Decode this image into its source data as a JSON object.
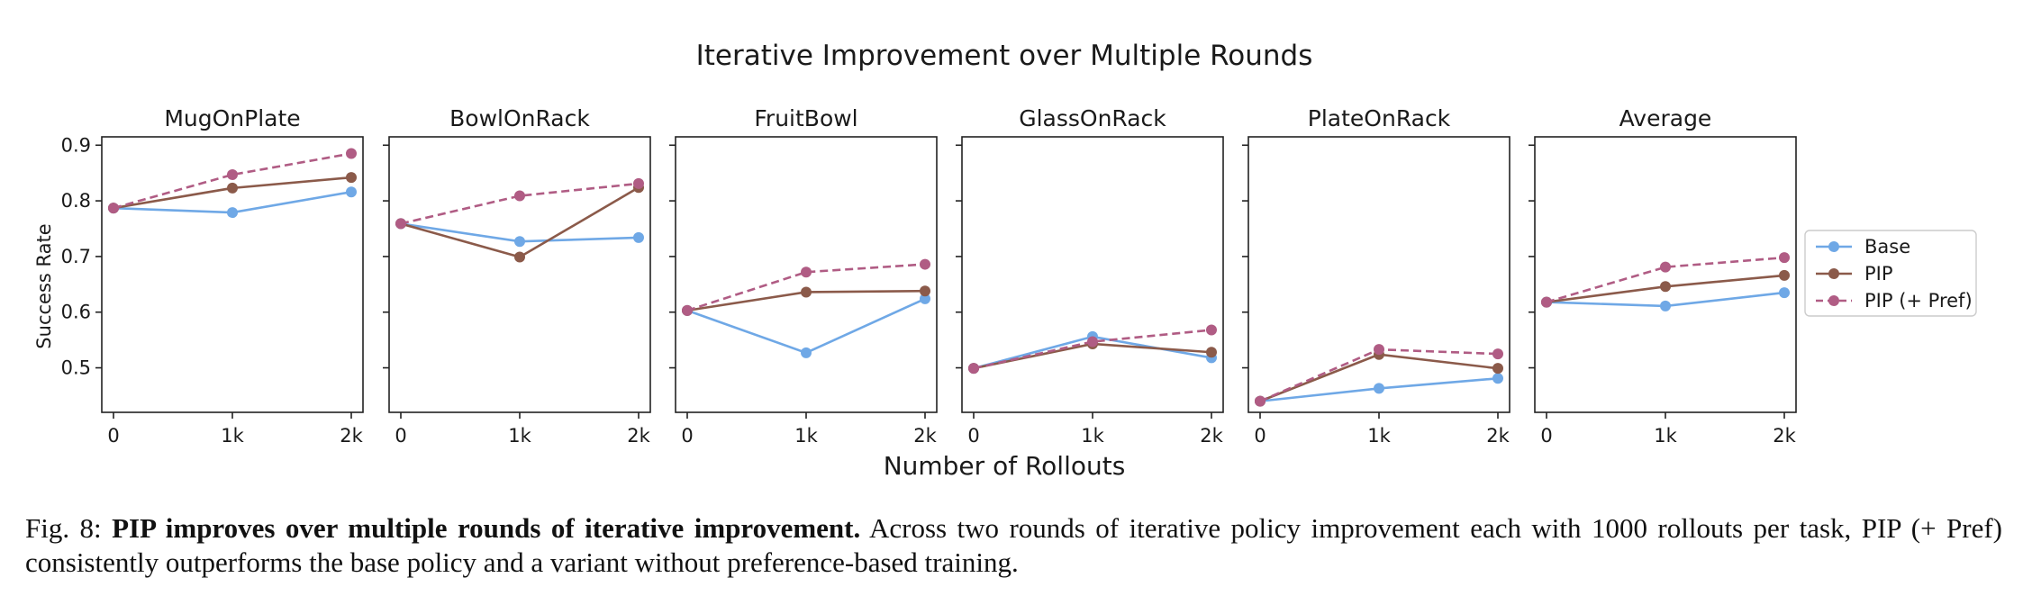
{
  "chart_data": {
    "type": "line",
    "title": "Iterative Improvement over Multiple Rounds",
    "xlabel": "Number of Rollouts",
    "ylabel": "Success Rate",
    "x": [
      "0",
      "1k",
      "2k"
    ],
    "ylim": [
      0.42,
      0.915
    ],
    "yticks": [
      "0.5",
      "0.6",
      "0.7",
      "0.8",
      "0.9"
    ],
    "legend": {
      "placement": "right",
      "entries": [
        "Base",
        "PIP",
        "PIP (+ Pref)"
      ]
    },
    "colors": {
      "Base": "#6fa8e6",
      "PIP": "#8b5a4a",
      "PIP (+ Pref)": "#b05c84"
    },
    "panels": [
      {
        "title": "MugOnPlate",
        "series": [
          {
            "name": "Base",
            "values": [
              0.787,
              0.779,
              0.816
            ]
          },
          {
            "name": "PIP",
            "values": [
              0.787,
              0.823,
              0.842
            ]
          },
          {
            "name": "PIP (+ Pref)",
            "values": [
              0.787,
              0.847,
              0.885
            ]
          }
        ]
      },
      {
        "title": "BowlOnRack",
        "series": [
          {
            "name": "Base",
            "values": [
              0.759,
              0.727,
              0.734
            ]
          },
          {
            "name": "PIP",
            "values": [
              0.759,
              0.699,
              0.824
            ]
          },
          {
            "name": "PIP (+ Pref)",
            "values": [
              0.759,
              0.809,
              0.831
            ]
          }
        ]
      },
      {
        "title": "FruitBowl",
        "series": [
          {
            "name": "Base",
            "values": [
              0.603,
              0.527,
              0.624
            ]
          },
          {
            "name": "PIP",
            "values": [
              0.603,
              0.636,
              0.638
            ]
          },
          {
            "name": "PIP (+ Pref)",
            "values": [
              0.603,
              0.672,
              0.686
            ]
          }
        ]
      },
      {
        "title": "GlassOnRack",
        "series": [
          {
            "name": "Base",
            "values": [
              0.499,
              0.556,
              0.518
            ]
          },
          {
            "name": "PIP",
            "values": [
              0.499,
              0.543,
              0.528
            ]
          },
          {
            "name": "PIP (+ Pref)",
            "values": [
              0.499,
              0.547,
              0.568
            ]
          }
        ]
      },
      {
        "title": "PlateOnRack",
        "series": [
          {
            "name": "Base",
            "values": [
              0.44,
              0.463,
              0.481
            ]
          },
          {
            "name": "PIP",
            "values": [
              0.44,
              0.524,
              0.499
            ]
          },
          {
            "name": "PIP (+ Pref)",
            "values": [
              0.44,
              0.533,
              0.525
            ]
          }
        ]
      },
      {
        "title": "Average",
        "series": [
          {
            "name": "Base",
            "values": [
              0.618,
              0.611,
              0.635
            ]
          },
          {
            "name": "PIP",
            "values": [
              0.618,
              0.646,
              0.666
            ]
          },
          {
            "name": "PIP (+ Pref)",
            "values": [
              0.618,
              0.681,
              0.698
            ]
          }
        ]
      }
    ]
  },
  "caption": {
    "label": "Fig. 8:",
    "bold": "PIP improves over multiple rounds of iterative improvement.",
    "text": "Across two rounds of iterative policy improvement each with 1000 rollouts per task, PIP (+ Pref) consistently outperforms the base policy and a variant without preference-based training."
  }
}
